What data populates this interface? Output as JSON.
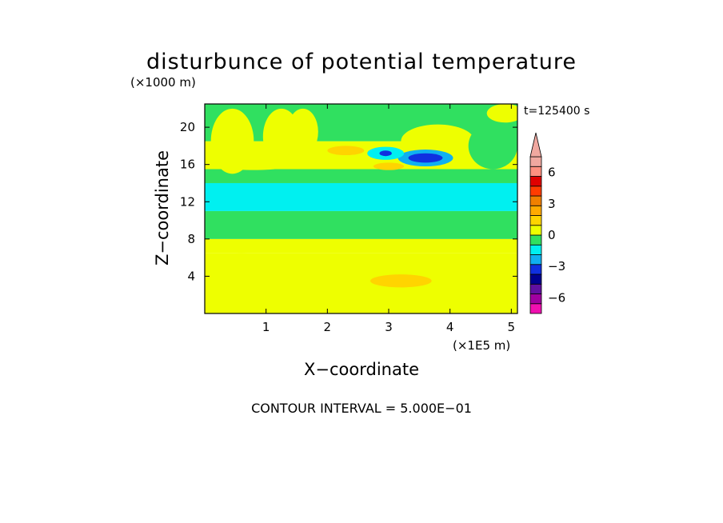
{
  "chart_data": {
    "type": "heatmap",
    "title": "disturbunce of potential temperature",
    "xlabel": "X−coordinate",
    "ylabel": "Z−coordinate",
    "x_unit": "(×1E5 m)",
    "y_unit": "(×1000 m)",
    "time_label": "t=125400 s",
    "footer": "CONTOUR INTERVAL = 5.000E−01",
    "xlim": [
      0,
      5.1
    ],
    "ylim": [
      0,
      22.5
    ],
    "x_ticks": [
      "1",
      "2",
      "3",
      "4",
      "5"
    ],
    "x_tick_values": [
      1,
      2,
      3,
      4,
      5
    ],
    "y_ticks": [
      "4",
      "8",
      "12",
      "16",
      "20"
    ],
    "y_tick_values": [
      4,
      8,
      12,
      16,
      20
    ],
    "colorbar": {
      "labels": [
        "6",
        "3",
        "0",
        "−3",
        "−6"
      ],
      "label_values": [
        6,
        3,
        0,
        -3,
        -6
      ],
      "levels": [
        -7.5,
        -6.5,
        -5.5,
        -4.5,
        -3.5,
        -2.5,
        -1.5,
        -0.5,
        0.5,
        1.5,
        2.5,
        3.5,
        4.5,
        5.5,
        6.5,
        7.5
      ],
      "colors": [
        "#f010b0",
        "#a000a0",
        "#6010a0",
        "#000090",
        "#1030e0",
        "#10b0f0",
        "#00f0f0",
        "#30e060",
        "#eeff00",
        "#ffd400",
        "#ffaa00",
        "#f08000",
        "#ff3c00",
        "#e00000",
        "#ff9080",
        "#f0a8a0"
      ]
    },
    "bands": [
      {
        "z_from": 0,
        "z_to": 6.5,
        "value": 0.5
      },
      {
        "z_from": 6.5,
        "z_to": 8,
        "value": 0.5
      },
      {
        "z_from": 8,
        "z_to": 11,
        "value": -0.5
      },
      {
        "z_from": 11,
        "z_to": 14,
        "value": -1
      },
      {
        "z_from": 14,
        "z_to": 15.5,
        "value": 0
      },
      {
        "z_from": 15.5,
        "z_to": 18.5,
        "value": 1
      },
      {
        "z_from": 18.5,
        "z_to": 22.5,
        "value": 0
      }
    ],
    "features": [
      {
        "x": 2.6,
        "z": 3.3,
        "rx": 2.6,
        "rz": 2.4,
        "value": 1
      },
      {
        "x": 0.6,
        "z": 5.5,
        "rx": 0.5,
        "rz": 1,
        "value": 1
      },
      {
        "x": 3.2,
        "z": 3.5,
        "rx": 0.5,
        "rz": 0.7,
        "value": 1.5
      },
      {
        "x": 1.1,
        "z": 12.5,
        "rx": 1.1,
        "rz": 1.3,
        "value": -1
      },
      {
        "x": 4.5,
        "z": 12.8,
        "rx": 0.6,
        "rz": 1.2,
        "value": -1
      },
      {
        "x": 0.8,
        "z": 16.2,
        "rx": 0.7,
        "rz": 0.8,
        "value": 1
      },
      {
        "x": 2.3,
        "z": 17.5,
        "rx": 0.3,
        "rz": 0.5,
        "value": 1.5
      },
      {
        "x": 3.0,
        "z": 15.8,
        "rx": 0.25,
        "rz": 0.4,
        "value": 1.5
      },
      {
        "x": 3.8,
        "z": 18.5,
        "rx": 0.6,
        "rz": 1.8,
        "value": 0.5
      },
      {
        "x": 3.6,
        "z": 16.7,
        "rx": 0.45,
        "rz": 0.9,
        "value": -2
      },
      {
        "x": 3.6,
        "z": 16.7,
        "rx": 0.28,
        "rz": 0.5,
        "value": -3
      },
      {
        "x": 2.95,
        "z": 17.2,
        "rx": 0.3,
        "rz": 0.7,
        "value": -1
      },
      {
        "x": 2.95,
        "z": 17.2,
        "rx": 0.1,
        "rz": 0.3,
        "value": -3
      },
      {
        "x": 0.45,
        "z": 18.5,
        "rx": 0.35,
        "rz": 3.5,
        "value": 0.5
      },
      {
        "x": 1.25,
        "z": 19,
        "rx": 0.3,
        "rz": 3,
        "value": 0.5
      },
      {
        "x": 1.6,
        "z": 19.5,
        "rx": 0.25,
        "rz": 2.5,
        "value": 0.5
      },
      {
        "x": 4.7,
        "z": 18,
        "rx": 0.4,
        "rz": 2.5,
        "value": 0
      },
      {
        "x": 4.9,
        "z": 21.5,
        "rx": 0.3,
        "rz": 1,
        "value": 0.5
      }
    ]
  }
}
